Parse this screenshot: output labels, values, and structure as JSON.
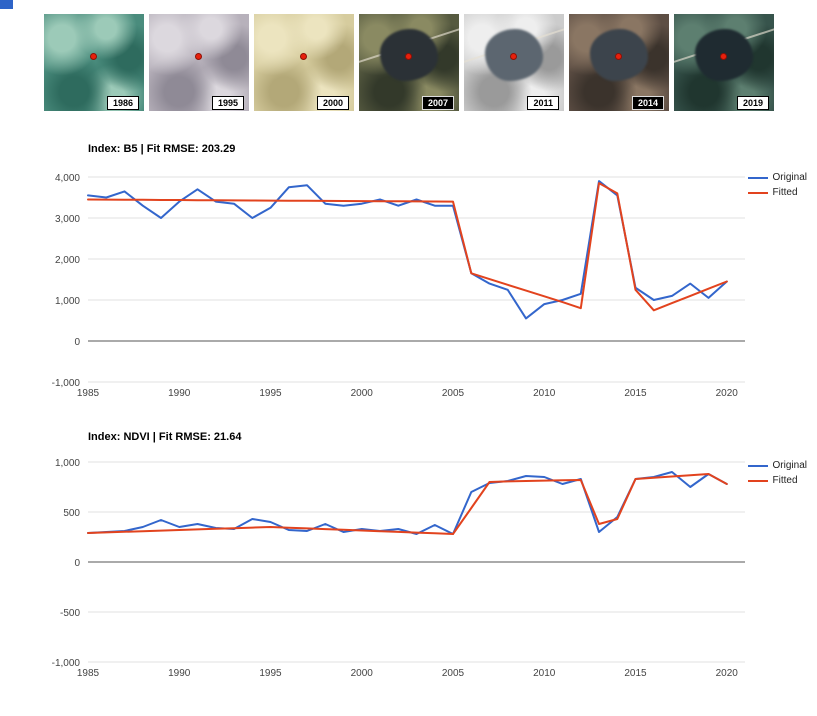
{
  "thumbnails": {
    "marker_color": "#e8200c",
    "items": [
      {
        "year": "1986",
        "base": "#4a8c7d",
        "light": "#9ccab8",
        "dark": "#2e6b5e",
        "lake": null,
        "label_style": "light",
        "road": false
      },
      {
        "year": "1995",
        "base": "#b7b1bb",
        "light": "#dcd8de",
        "dark": "#8f8a96",
        "lake": null,
        "label_style": "light",
        "road": false
      },
      {
        "year": "2000",
        "base": "#d6cc9e",
        "light": "#ece4bf",
        "dark": "#b3a878",
        "lake": null,
        "label_style": "light",
        "road": false
      },
      {
        "year": "2007",
        "base": "#565a40",
        "light": "#8a8a62",
        "dark": "#33392a",
        "lake": "#2b3136",
        "label_style": "dark",
        "road": true
      },
      {
        "year": "2011",
        "base": "#cccccc",
        "light": "#eeeeee",
        "dark": "#9a9a9a",
        "lake": "#5c6670",
        "label_style": "light",
        "road": true
      },
      {
        "year": "2014",
        "base": "#5d4e44",
        "light": "#8a7663",
        "dark": "#3b332c",
        "lake": "#3c444c",
        "label_style": "dark",
        "road": false
      },
      {
        "year": "2019",
        "base": "#37544c",
        "light": "#5d7f70",
        "dark": "#20362f",
        "lake": "#1f2b31",
        "label_style": "light",
        "road": true
      }
    ]
  },
  "chart_data": [
    {
      "type": "line",
      "title": "Index: B5 | Fit RMSE: 203.29",
      "x": [
        1985,
        1986,
        1987,
        1988,
        1989,
        1990,
        1991,
        1992,
        1993,
        1994,
        1995,
        1996,
        1997,
        1998,
        1999,
        2000,
        2001,
        2002,
        2003,
        2004,
        2005,
        2006,
        2007,
        2008,
        2009,
        2010,
        2011,
        2012,
        2013,
        2014,
        2015,
        2016,
        2017,
        2018,
        2019,
        2020
      ],
      "series": [
        {
          "name": "Original",
          "color": "#3366cc",
          "values": [
            3550,
            3500,
            3650,
            3300,
            3000,
            3400,
            3700,
            3400,
            3350,
            3000,
            3250,
            3750,
            3800,
            3350,
            3300,
            3350,
            3450,
            3300,
            3450,
            3300,
            3300,
            1650,
            1400,
            1250,
            550,
            900,
            1000,
            1150,
            3900,
            3550,
            1300,
            1000,
            1100,
            1400,
            1050,
            1450
          ]
        },
        {
          "name": "Fitted",
          "color": "#e2431e",
          "values": [
            3450,
            3448,
            3445,
            3443,
            3440,
            3438,
            3435,
            3433,
            3430,
            3428,
            3425,
            3423,
            3420,
            3418,
            3415,
            3413,
            3410,
            3408,
            3405,
            3403,
            3400,
            1650,
            1510,
            1370,
            1230,
            1090,
            950,
            800,
            3850,
            3600,
            1250,
            750,
            925,
            1100,
            1275,
            1450
          ]
        }
      ],
      "xlim": [
        1985,
        2021
      ],
      "ylim": [
        -1000,
        4000
      ],
      "yticks": [
        4000,
        3000,
        2000,
        1000,
        0,
        -1000
      ],
      "ytick_labels": [
        "4,000",
        "3,000",
        "2,000",
        "1,000",
        "0",
        "-1,000"
      ],
      "xticks": [
        1985,
        1990,
        1995,
        2000,
        2005,
        2010,
        2015,
        2020
      ],
      "grid": true,
      "legend_position": "right"
    },
    {
      "type": "line",
      "title": "Index: NDVI | Fit RMSE: 21.64",
      "x": [
        1985,
        1986,
        1987,
        1988,
        1989,
        1990,
        1991,
        1992,
        1993,
        1994,
        1995,
        1996,
        1997,
        1998,
        1999,
        2000,
        2001,
        2002,
        2003,
        2004,
        2005,
        2006,
        2007,
        2008,
        2009,
        2010,
        2011,
        2012,
        2013,
        2014,
        2015,
        2016,
        2017,
        2018,
        2019,
        2020
      ],
      "series": [
        {
          "name": "Original",
          "color": "#3366cc",
          "values": [
            290,
            300,
            310,
            350,
            420,
            350,
            380,
            340,
            330,
            430,
            400,
            320,
            310,
            380,
            300,
            330,
            310,
            330,
            280,
            370,
            280,
            700,
            790,
            810,
            860,
            850,
            780,
            830,
            300,
            450,
            830,
            850,
            900,
            750,
            880,
            780
          ]
        },
        {
          "name": "Fitted",
          "color": "#e2431e",
          "values": [
            290,
            296,
            302,
            308,
            314,
            320,
            326,
            332,
            338,
            344,
            350,
            343,
            336,
            329,
            322,
            315,
            308,
            301,
            294,
            287,
            280,
            540,
            800,
            806,
            810,
            814,
            817,
            820,
            380,
            430,
            830,
            842,
            855,
            868,
            880,
            780
          ]
        }
      ],
      "xlim": [
        1985,
        2021
      ],
      "ylim": [
        -1000,
        1000
      ],
      "yticks": [
        1000,
        500,
        0,
        -500,
        -1000
      ],
      "ytick_labels": [
        "1,000",
        "500",
        "0",
        "-500",
        "-1,000"
      ],
      "xticks": [
        1985,
        1990,
        1995,
        2000,
        2005,
        2010,
        2015,
        2020
      ],
      "grid": true,
      "legend_position": "right"
    }
  ]
}
